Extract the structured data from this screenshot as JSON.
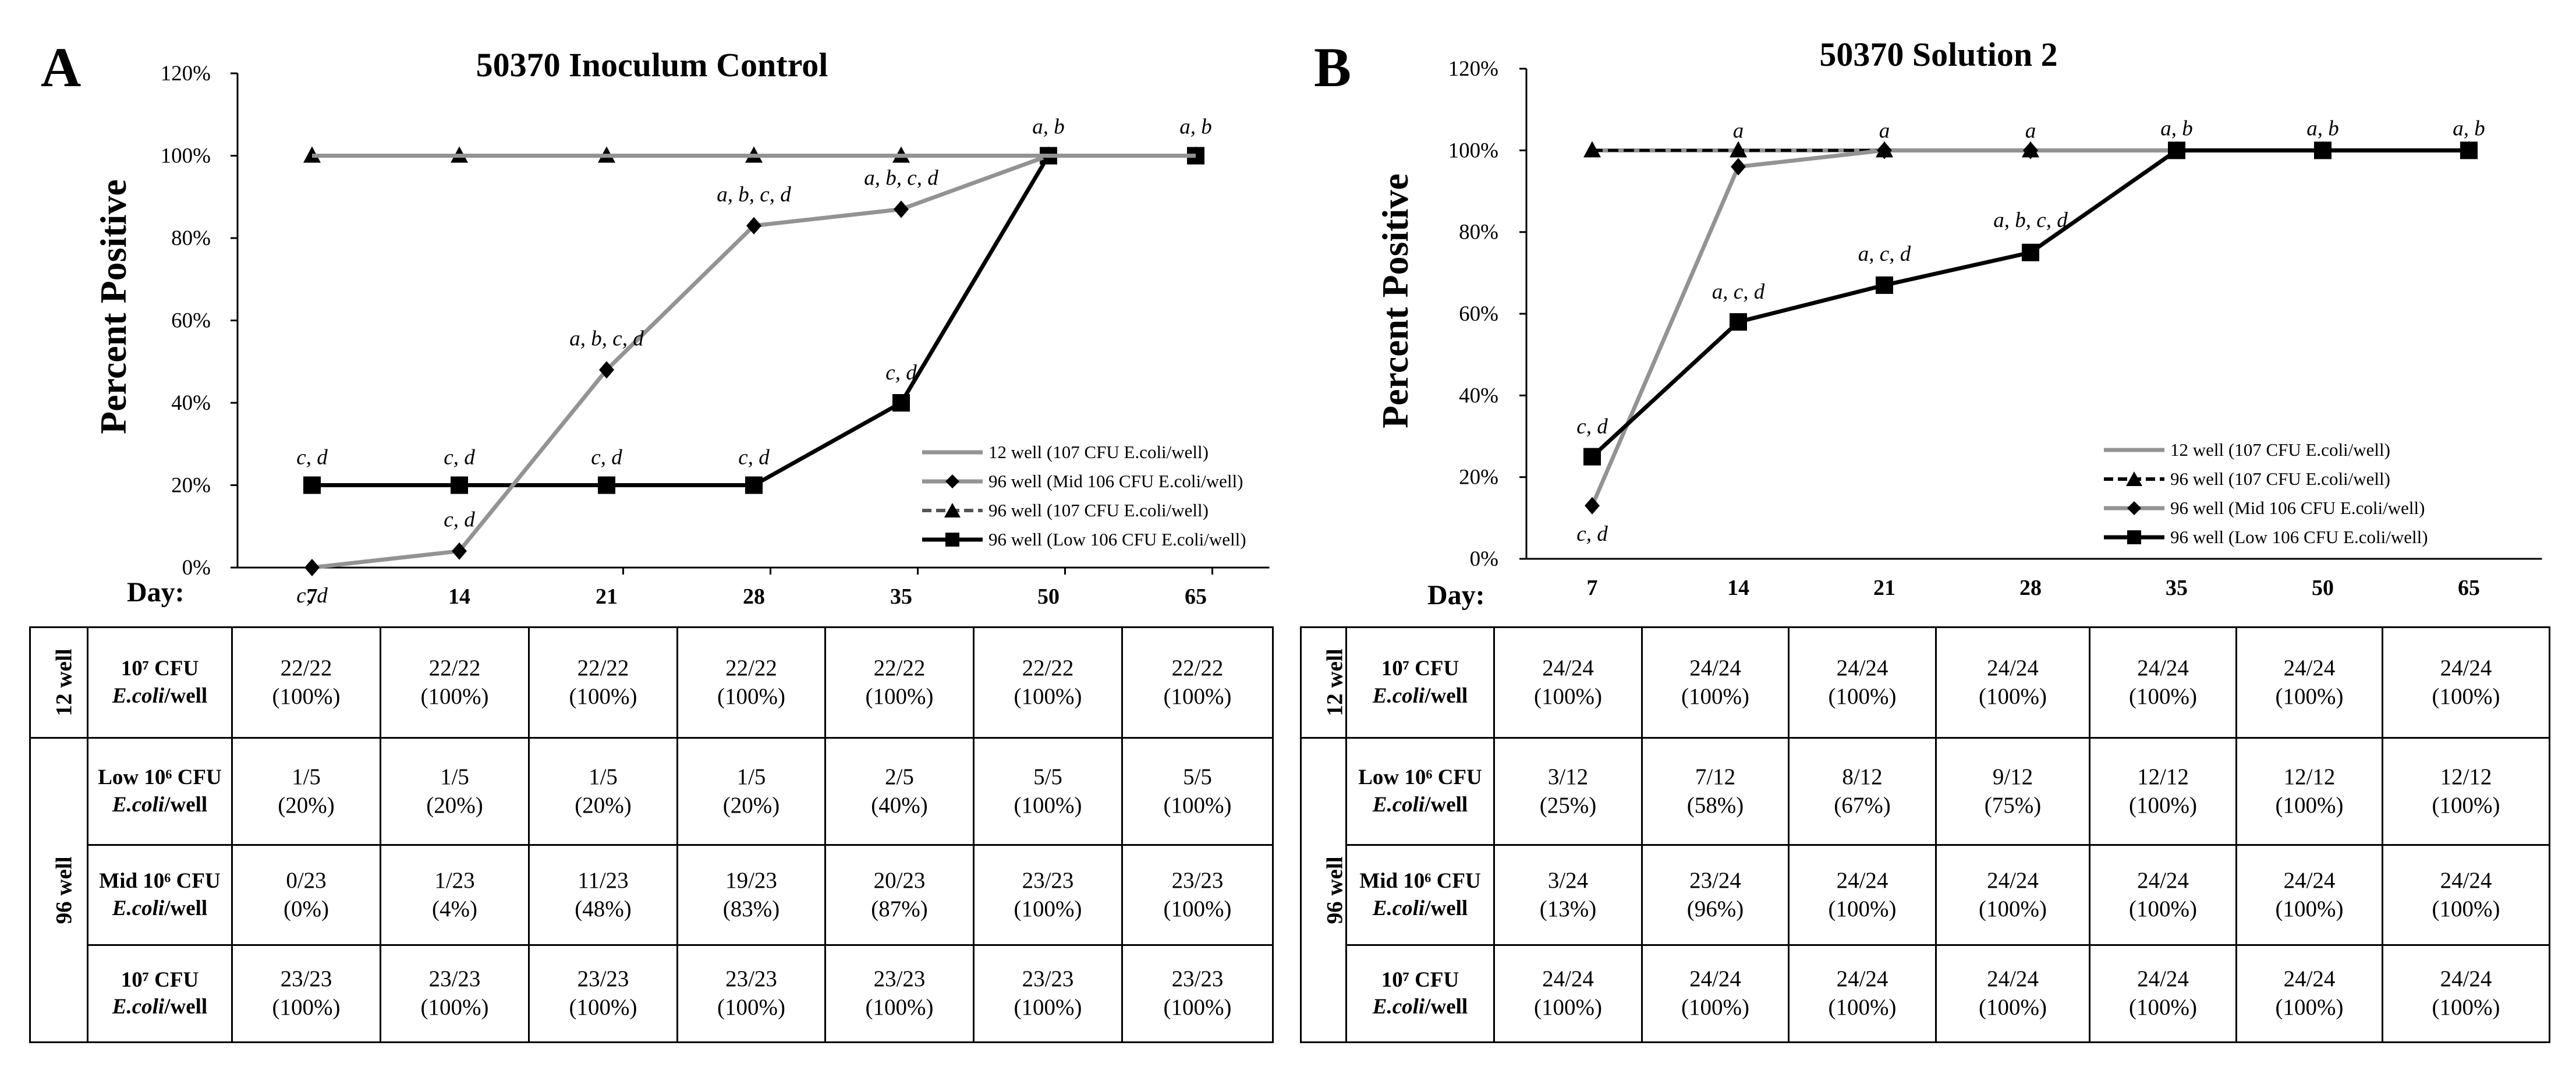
{
  "colors": {
    "gray_series": "#939393",
    "black_series": "#000000",
    "axis": "#000000"
  },
  "day_label": "Day:",
  "legend_labels": {
    "s12": "12 well (107 CFU E.coli/well)",
    "mid": "96 well (Mid 106 CFU E.coli/well)",
    "s107": "96 well (107 CFU E.coli/well)",
    "low": "96 well (Low 106 CFU E.coli/well)"
  },
  "row_labels": {
    "g12": "12 well",
    "g96": "96 well",
    "r107_l1": "10⁷ CFU",
    "r107_l2a": "E.coli",
    "r107_l2b": "/well",
    "low_l1": "Low 10⁶ CFU",
    "low_l2a": "E.coli",
    "low_l2b": "/well",
    "mid_l1": "Mid 10⁶ CFU",
    "mid_l2a": "E.coli",
    "mid_l2b": "/well"
  },
  "chart_data": [
    {
      "panel": "A",
      "type": "line",
      "title": "50370 Inoculum Control",
      "xlabel": "Day:",
      "ylabel": "Percent Positive",
      "categories": [
        "7",
        "14",
        "21",
        "28",
        "35",
        "50",
        "65"
      ],
      "ylim": [
        0,
        120
      ],
      "yticks": [
        "0%",
        "20%",
        "40%",
        "60%",
        "80%",
        "100%",
        "120%"
      ],
      "legend_order": [
        "s12",
        "mid",
        "s107",
        "low"
      ],
      "series": [
        {
          "key": "s107",
          "name": "96 well (107 CFU E.coli/well)",
          "values": [
            100,
            100,
            100,
            100,
            100,
            100,
            100
          ],
          "color": "#555555",
          "dash": true,
          "marker": "triangle"
        },
        {
          "key": "low",
          "name": "96 well (Low 106 CFU E.coli/well)",
          "values": [
            20,
            20,
            20,
            20,
            40,
            100,
            100
          ],
          "color": "#000000",
          "dash": false,
          "marker": "square"
        },
        {
          "key": "mid",
          "name": "96 well (Mid 106 CFU E.coli/well)",
          "values": [
            0,
            4,
            48,
            83,
            87,
            100,
            100
          ],
          "color": "#939393",
          "dash": false,
          "marker": "diamond"
        },
        {
          "key": "s12",
          "name": "12 well (107 CFU E.coli/well)",
          "values": [
            100,
            100,
            100,
            100,
            100,
            100,
            100
          ],
          "color": "#939393",
          "dash": false,
          "marker": "none"
        }
      ],
      "annotations": [
        {
          "text": "c, d",
          "x": "7",
          "y": 20
        },
        {
          "text": "c, d",
          "x": "14",
          "y": 20
        },
        {
          "text": "c, d",
          "x": "21",
          "y": 20
        },
        {
          "text": "c, d",
          "x": "28",
          "y": 20
        },
        {
          "text": "c, d",
          "x": "35",
          "y": 40
        },
        {
          "text": "c, d",
          "x": "7",
          "y": 0
        },
        {
          "text": "c, d",
          "x": "14",
          "y": 4
        },
        {
          "text": "a, b, c, d",
          "x": "21",
          "y": 48
        },
        {
          "text": "a, b, c, d",
          "x": "28",
          "y": 83
        },
        {
          "text": "a, b, c, d",
          "x": "35",
          "y": 87
        },
        {
          "text": "a, b",
          "x": "50",
          "y": 100
        },
        {
          "text": "a, b",
          "x": "65",
          "y": 100
        }
      ],
      "table": {
        "r12": [
          [
            "22/22",
            "(100%)"
          ],
          [
            "22/22",
            "(100%)"
          ],
          [
            "22/22",
            "(100%)"
          ],
          [
            "22/22",
            "(100%)"
          ],
          [
            "22/22",
            "(100%)"
          ],
          [
            "22/22",
            "(100%)"
          ],
          [
            "22/22",
            "(100%)"
          ]
        ],
        "low": [
          [
            "1/5",
            "(20%)"
          ],
          [
            "1/5",
            "(20%)"
          ],
          [
            "1/5",
            "(20%)"
          ],
          [
            "1/5",
            "(20%)"
          ],
          [
            "2/5",
            "(40%)"
          ],
          [
            "5/5",
            "(100%)"
          ],
          [
            "5/5",
            "(100%)"
          ]
        ],
        "mid": [
          [
            "0/23",
            "(0%)"
          ],
          [
            "1/23",
            "(4%)"
          ],
          [
            "11/23",
            "(48%)"
          ],
          [
            "19/23",
            "(83%)"
          ],
          [
            "20/23",
            "(87%)"
          ],
          [
            "23/23",
            "(100%)"
          ],
          [
            "23/23",
            "(100%)"
          ]
        ],
        "r107": [
          [
            "23/23",
            "(100%)"
          ],
          [
            "23/23",
            "(100%)"
          ],
          [
            "23/23",
            "(100%)"
          ],
          [
            "23/23",
            "(100%)"
          ],
          [
            "23/23",
            "(100%)"
          ],
          [
            "23/23",
            "(100%)"
          ],
          [
            "23/23",
            "(100%)"
          ]
        ]
      }
    },
    {
      "panel": "B",
      "type": "line",
      "title": "50370 Solution 2",
      "xlabel": "Day:",
      "ylabel": "Percent Positive",
      "categories": [
        "7",
        "14",
        "21",
        "28",
        "35",
        "50",
        "65"
      ],
      "ylim": [
        0,
        120
      ],
      "yticks": [
        "0%",
        "20%",
        "40%",
        "60%",
        "80%",
        "100%",
        "120%"
      ],
      "legend_order": [
        "s12",
        "s107",
        "mid",
        "low"
      ],
      "series": [
        {
          "key": "s12",
          "name": "12 well (107 CFU E.coli/well)",
          "values": [
            100,
            100,
            100,
            100,
            100,
            100,
            100
          ],
          "color": "#939393",
          "dash": false,
          "marker": "none"
        },
        {
          "key": "s107",
          "name": "96 well (107 CFU E.coli/well)",
          "values": [
            100,
            100,
            100,
            100,
            100,
            100,
            100
          ],
          "color": "#000000",
          "dash": true,
          "marker": "triangle"
        },
        {
          "key": "mid",
          "name": "96 well (Mid 106 CFU E.coli/well)",
          "values": [
            13,
            96,
            100,
            100,
            100,
            100,
            100
          ],
          "color": "#939393",
          "dash": false,
          "marker": "diamond"
        },
        {
          "key": "low",
          "name": "96 well (Low 106 CFU E.coli/well)",
          "values": [
            25,
            58,
            67,
            75,
            100,
            100,
            100
          ],
          "color": "#000000",
          "dash": false,
          "marker": "square"
        }
      ],
      "annotations": [
        {
          "text": "c, d",
          "x": "7",
          "y": 25
        },
        {
          "text": "c, d",
          "x": "7",
          "y": 13
        },
        {
          "text": "a",
          "x": "14",
          "y": 100
        },
        {
          "text": "a",
          "x": "21",
          "y": 100
        },
        {
          "text": "a",
          "x": "28",
          "y": 100
        },
        {
          "text": "a, c, d",
          "x": "14",
          "y": 58
        },
        {
          "text": "a, c, d",
          "x": "21",
          "y": 67
        },
        {
          "text": "a, b, c, d",
          "x": "28",
          "y": 75
        },
        {
          "text": "a, b",
          "x": "35",
          "y": 100
        },
        {
          "text": "a, b",
          "x": "50",
          "y": 100
        },
        {
          "text": "a, b",
          "x": "65",
          "y": 100
        }
      ],
      "table": {
        "r12": [
          [
            "24/24",
            "(100%)"
          ],
          [
            "24/24",
            "(100%)"
          ],
          [
            "24/24",
            "(100%)"
          ],
          [
            "24/24",
            "(100%)"
          ],
          [
            "24/24",
            "(100%)"
          ],
          [
            "24/24",
            "(100%)"
          ],
          [
            "24/24",
            "(100%)"
          ]
        ],
        "low": [
          [
            "3/12",
            "(25%)"
          ],
          [
            "7/12",
            "(58%)"
          ],
          [
            "8/12",
            "(67%)"
          ],
          [
            "9/12",
            "(75%)"
          ],
          [
            "12/12",
            "(100%)"
          ],
          [
            "12/12",
            "(100%)"
          ],
          [
            "12/12",
            "(100%)"
          ]
        ],
        "mid": [
          [
            "3/24",
            "(13%)"
          ],
          [
            "23/24",
            "(96%)"
          ],
          [
            "24/24",
            "(100%)"
          ],
          [
            "24/24",
            "(100%)"
          ],
          [
            "24/24",
            "(100%)"
          ],
          [
            "24/24",
            "(100%)"
          ],
          [
            "24/24",
            "(100%)"
          ]
        ],
        "r107": [
          [
            "24/24",
            "(100%)"
          ],
          [
            "24/24",
            "(100%)"
          ],
          [
            "24/24",
            "(100%)"
          ],
          [
            "24/24",
            "(100%)"
          ],
          [
            "24/24",
            "(100%)"
          ],
          [
            "24/24",
            "(100%)"
          ],
          [
            "24/24",
            "(100%)"
          ]
        ]
      }
    }
  ]
}
